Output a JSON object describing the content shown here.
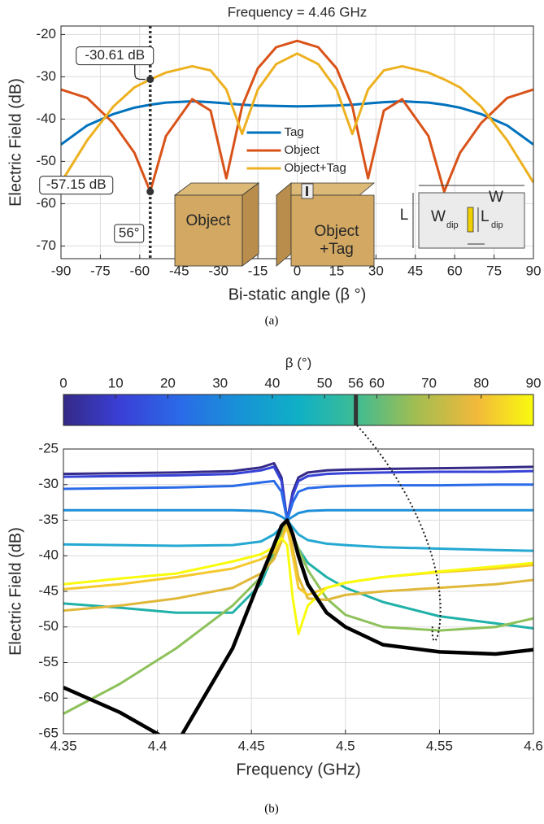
{
  "chart_data": [
    {
      "type": "line",
      "title": "Frequency = 4.46 GHz",
      "xlabel": "Bi-static angle (β °)",
      "ylabel": "Electric Field (dB)",
      "caption": "(a)",
      "x": [
        -90,
        -80,
        -70,
        -62,
        -56,
        -50,
        -40,
        -33,
        -27,
        -21,
        -15,
        -8,
        0,
        8,
        15,
        21,
        27,
        33,
        40,
        50,
        56,
        62,
        70,
        80,
        90
      ],
      "series": [
        {
          "name": "Tag",
          "color": "#0072bd",
          "values": [
            -46,
            -41.5,
            -38.8,
            -37.3,
            -36.6,
            -36.1,
            -35.8,
            -36,
            -36.3,
            -36.6,
            -36.8,
            -36.9,
            -37,
            -36.9,
            -36.8,
            -36.6,
            -36.3,
            -36,
            -35.8,
            -36.1,
            -36.6,
            -37.3,
            -38.8,
            -41.5,
            -46
          ]
        },
        {
          "name": "Object",
          "color": "#d95319",
          "values": [
            -33,
            -35,
            -41,
            -48,
            -57.15,
            -44,
            -35.3,
            -38,
            -54,
            -37,
            -28,
            -23,
            -21.5,
            -23,
            -28,
            -37,
            -54,
            -38,
            -35.3,
            -44,
            -57.15,
            -48,
            -41,
            -35,
            -33
          ]
        },
        {
          "name": "Object+Tag",
          "color": "#edb120",
          "values": [
            -55,
            -45,
            -37,
            -32.5,
            -30.61,
            -29,
            -27.5,
            -28.5,
            -33,
            -43.5,
            -33,
            -27,
            -24.5,
            -27,
            -33,
            -43.5,
            -33,
            -28.5,
            -27.5,
            -29,
            -30.61,
            -32.5,
            -37,
            -45,
            -55
          ]
        }
      ],
      "xlim": [
        -90,
        90
      ],
      "ylim": [
        -73,
        -18
      ],
      "xticks": [
        -90,
        -75,
        -60,
        -45,
        -30,
        -15,
        0,
        15,
        30,
        45,
        60,
        75,
        90
      ],
      "yticks": [
        -70,
        -60,
        -50,
        -40,
        -30,
        -20
      ],
      "grid": true,
      "legend": "center",
      "marker_line": {
        "x": -56,
        "label": "56°"
      },
      "points": [
        {
          "x": -56,
          "y": -30.61,
          "label": "-30.61 dB"
        },
        {
          "x": -56,
          "y": -57.15,
          "label": "-57.15 dB"
        }
      ],
      "inset_labels": {
        "object": "Object",
        "object_tag_1": "Object",
        "object_tag_2": "+Tag",
        "w": "W",
        "l": "L",
        "wdip": "W",
        "wdip_sub": "dip",
        "ldip": "L",
        "ldip_sub": "dip"
      }
    },
    {
      "type": "line",
      "xlabel": "Frequency (GHz)",
      "ylabel": "Electric Field (dB)",
      "caption": "(b)",
      "colorbar_label": "β (°)",
      "colorbar_lim": [
        0,
        90
      ],
      "colorbar_ticks": [
        0,
        10,
        20,
        30,
        40,
        50,
        56,
        60,
        70,
        80,
        90
      ],
      "colorbar_highlight": 56,
      "x": [
        4.35,
        4.38,
        4.41,
        4.44,
        4.455,
        4.462,
        4.466,
        4.469,
        4.472,
        4.475,
        4.48,
        4.49,
        4.5,
        4.52,
        4.55,
        4.58,
        4.6
      ],
      "series": [
        {
          "color": "#352a87",
          "values": [
            -28.5,
            -28.4,
            -28.3,
            -28.1,
            -27.6,
            -27,
            -29,
            -35,
            -31,
            -29,
            -28.3,
            -28,
            -27.9,
            -27.8,
            -27.7,
            -27.6,
            -27.5
          ]
        },
        {
          "color": "#3742d6",
          "values": [
            -28.9,
            -28.8,
            -28.7,
            -28.5,
            -28,
            -27.5,
            -29.5,
            -35,
            -31.5,
            -29.5,
            -28.8,
            -28.5,
            -28.4,
            -28.3,
            -28.2,
            -28.2,
            -28.1
          ]
        },
        {
          "color": "#2a6be8",
          "values": [
            -30.6,
            -30.5,
            -30.4,
            -30.2,
            -29.7,
            -29.5,
            -31,
            -35,
            -32.5,
            -31,
            -30.5,
            -30.3,
            -30.2,
            -30.1,
            -30.1,
            -30,
            -30
          ]
        },
        {
          "color": "#1f8fd8",
          "values": [
            -33.6,
            -33.6,
            -33.6,
            -33.6,
            -33.7,
            -34,
            -34.5,
            -35,
            -34.5,
            -34,
            -33.7,
            -33.6,
            -33.6,
            -33.6,
            -33.6,
            -33.6,
            -33.6
          ]
        },
        {
          "color": "#25a8d2",
          "values": [
            -38.4,
            -38.5,
            -38.6,
            -38.5,
            -38,
            -37,
            -36,
            -35,
            -36,
            -37,
            -37.8,
            -38.3,
            -38.5,
            -38.8,
            -39,
            -39.2,
            -39.3
          ]
        },
        {
          "color": "#20b1a8",
          "values": [
            -46.7,
            -47.3,
            -48,
            -48,
            -44,
            -39.5,
            -36.5,
            -35,
            -37,
            -39,
            -41,
            -43,
            -44.5,
            -46.5,
            -48.5,
            -49.5,
            -50.2
          ]
        },
        {
          "color": "#8dc15a",
          "values": [
            -62.2,
            -58,
            -53,
            -47,
            -43,
            -40,
            -37,
            -35,
            -37,
            -39,
            -42,
            -46,
            -48.3,
            -50,
            -50.5,
            -50,
            -48.8
          ]
        },
        {
          "color": "#e0b83a",
          "values": [
            -47.7,
            -47,
            -46,
            -44.5,
            -42.5,
            -40.5,
            -38,
            -35,
            -39,
            -43,
            -46,
            -46.2,
            -45.5,
            -45,
            -44.5,
            -44,
            -43.4
          ]
        },
        {
          "color": "#f5c92c",
          "values": [
            -44.7,
            -44,
            -43,
            -41.8,
            -40.5,
            -39.5,
            -37.5,
            -36,
            -40,
            -44.5,
            -45.5,
            -44.5,
            -43.8,
            -43,
            -42.3,
            -41.8,
            -41.3
          ]
        },
        {
          "color": "#f9fb0e",
          "values": [
            -44,
            -43.2,
            -42.5,
            -40.8,
            -39.8,
            -38.8,
            -37.5,
            -38.5,
            -46,
            -51,
            -47,
            -44.5,
            -43.8,
            -43,
            -42.2,
            -41.5,
            -41
          ]
        },
        {
          "color": "#000000",
          "values": [
            -58.5,
            -62,
            -66.5,
            -53,
            -43,
            -38.5,
            -35.8,
            -35,
            -37,
            -40,
            -44,
            -48,
            -50,
            -52.5,
            -53.5,
            -53.8,
            -53.2
          ]
        }
      ],
      "xlim": [
        4.35,
        4.6
      ],
      "ylim": [
        -65,
        -25
      ],
      "xticks": [
        4.35,
        4.4,
        4.45,
        4.5,
        4.55,
        4.6
      ],
      "yticks": [
        -65,
        -60,
        -55,
        -50,
        -45,
        -40,
        -35,
        -30,
        -25
      ],
      "grid": true
    }
  ]
}
